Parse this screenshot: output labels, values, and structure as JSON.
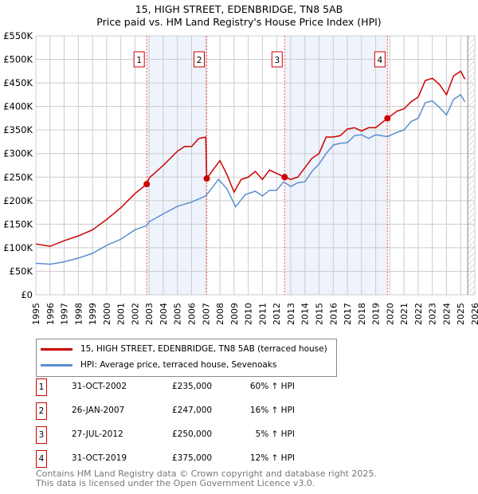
{
  "chart_data": {
    "type": "line",
    "title": "15, HIGH STREET, EDENBRIDGE, TN8 5AB",
    "subtitle": "Price paid vs. HM Land Registry's House Price Index (HPI)",
    "xlim": [
      1995,
      2026
    ],
    "ylim": [
      0,
      550000
    ],
    "x_ticks": [
      "1995",
      "1996",
      "1997",
      "1998",
      "1999",
      "2000",
      "2001",
      "2002",
      "2003",
      "2004",
      "2005",
      "2006",
      "2007",
      "2008",
      "2009",
      "2010",
      "2011",
      "2012",
      "2013",
      "2014",
      "2015",
      "2016",
      "2017",
      "2018",
      "2019",
      "2020",
      "2021",
      "2022",
      "2023",
      "2024",
      "2025",
      "2026"
    ],
    "y_ticks": [
      {
        "v": 0,
        "label": "£0"
      },
      {
        "v": 50000,
        "label": "£50K"
      },
      {
        "v": 100000,
        "label": "£100K"
      },
      {
        "v": 150000,
        "label": "£150K"
      },
      {
        "v": 200000,
        "label": "£200K"
      },
      {
        "v": 250000,
        "label": "£250K"
      },
      {
        "v": 300000,
        "label": "£300K"
      },
      {
        "v": 350000,
        "label": "£350K"
      },
      {
        "v": 400000,
        "label": "£400K"
      },
      {
        "v": 450000,
        "label": "£450K"
      },
      {
        "v": 500000,
        "label": "£500K"
      },
      {
        "v": 550000,
        "label": "£550K"
      }
    ],
    "grid": true,
    "shaded_ranges": [
      [
        2002.83,
        2007.07
      ],
      [
        2012.57,
        2019.83
      ]
    ],
    "hatched_from": 2025.5,
    "series": [
      {
        "name": "15, HIGH STREET, EDENBRIDGE, TN8 5AB (terraced house)",
        "color": "#cc0000",
        "x": [
          1995,
          1996,
          1997,
          1998,
          1999,
          2000,
          2001,
          2001.5,
          2002,
          2002.83,
          2003,
          2004,
          2005,
          2005.5,
          2006,
          2006.5,
          2007.0,
          2007.07,
          2007.5,
          2008,
          2008.5,
          2009.0,
          2009.5,
          2010,
          2010.5,
          2011,
          2011.5,
          2012,
          2012.57,
          2013,
          2013.5,
          2014,
          2014.5,
          2015,
          2015.5,
          2016,
          2016.5,
          2017,
          2017.5,
          2018,
          2018.5,
          2019,
          2019.83,
          2020.5,
          2021,
          2021.5,
          2022,
          2022.5,
          2023,
          2023.5,
          2024,
          2024.5,
          2025,
          2025.3
        ],
        "y": [
          108000,
          103000,
          115000,
          125000,
          138000,
          160000,
          185000,
          200000,
          215000,
          235000,
          248000,
          275000,
          305000,
          315000,
          315000,
          332000,
          335000,
          247000,
          265000,
          285000,
          255000,
          218000,
          245000,
          250000,
          262000,
          245000,
          265000,
          258000,
          250000,
          245000,
          250000,
          270000,
          290000,
          300000,
          335000,
          335000,
          338000,
          352000,
          355000,
          348000,
          355000,
          355000,
          375000,
          390000,
          395000,
          410000,
          420000,
          455000,
          460000,
          447000,
          425000,
          465000,
          475000,
          458000
        ]
      },
      {
        "name": "HPI: Average price, terraced house, Sevenoaks",
        "color": "#5b8fd0",
        "x": [
          1995,
          1996,
          1997,
          1998,
          1999,
          2000,
          2001,
          2002,
          2002.83,
          2003,
          2004,
          2005,
          2006,
          2007,
          2007.9,
          2008.5,
          2009.1,
          2009.8,
          2010.5,
          2011,
          2011.5,
          2012,
          2012.5,
          2013,
          2013.5,
          2014,
          2014.5,
          2015,
          2015.5,
          2016,
          2016.5,
          2017,
          2017.5,
          2018,
          2018.5,
          2019,
          2019.83,
          2020.5,
          2021,
          2021.5,
          2022,
          2022.5,
          2023,
          2023.5,
          2024,
          2024.5,
          2025,
          2025.3
        ],
        "y": [
          67000,
          65000,
          70000,
          78000,
          88000,
          105000,
          118000,
          138000,
          147000,
          155000,
          172000,
          188000,
          197000,
          210000,
          245000,
          225000,
          187000,
          213000,
          220000,
          210000,
          222000,
          222000,
          240000,
          230000,
          238000,
          240000,
          262000,
          278000,
          300000,
          318000,
          322000,
          323000,
          338000,
          340000,
          332000,
          340000,
          336000,
          345000,
          350000,
          368000,
          375000,
          408000,
          412000,
          398000,
          382000,
          415000,
          425000,
          410000
        ]
      }
    ],
    "sales": [
      {
        "n": "1",
        "x": 2002.83,
        "y": 235000
      },
      {
        "n": "2",
        "x": 2007.07,
        "y": 247000
      },
      {
        "n": "3",
        "x": 2012.57,
        "y": 250000
      },
      {
        "n": "4",
        "x": 2019.83,
        "y": 375000
      }
    ]
  },
  "legend": {
    "red": "15, HIGH STREET, EDENBRIDGE, TN8 5AB (terraced house)",
    "blue": "HPI: Average price, terraced house, Sevenoaks"
  },
  "table": [
    {
      "n": "1",
      "date": "31-OCT-2002",
      "price": "£235,000",
      "hpi": "60% ↑ HPI"
    },
    {
      "n": "2",
      "date": "26-JAN-2007",
      "price": "£247,000",
      "hpi": "16% ↑ HPI"
    },
    {
      "n": "3",
      "date": "27-JUL-2012",
      "price": "£250,000",
      "hpi": "5% ↑ HPI"
    },
    {
      "n": "4",
      "date": "31-OCT-2019",
      "price": "£375,000",
      "hpi": "12% ↑ HPI"
    }
  ],
  "footer": [
    "Contains HM Land Registry data © Crown copyright and database right 2025.",
    "This data is licensed under the Open Government Licence v3.0."
  ]
}
